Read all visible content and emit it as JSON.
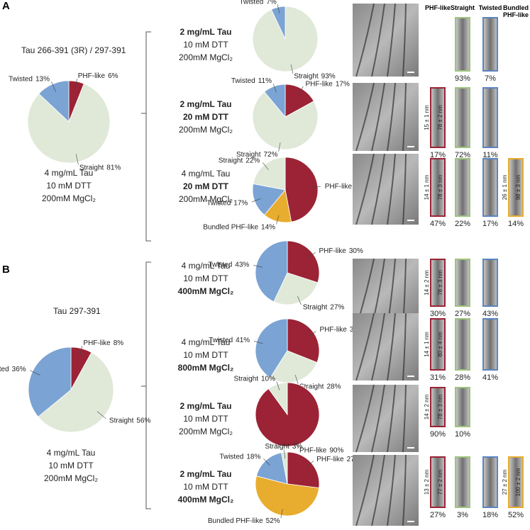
{
  "panels": [
    "A",
    "B"
  ],
  "columns": [
    "PHF-like",
    "Straight",
    "Twisted",
    "Bundled PHF-like"
  ],
  "column_colors": [
    "#9b2335",
    "#9cc47a",
    "#5a84c0",
    "#e8ac2e"
  ],
  "chart_data": [
    {
      "type": "pie",
      "title": "Tau 266-391 (3R) / 297-391",
      "categories": [
        "PHF-like",
        "Straight",
        "Twisted"
      ],
      "values": [
        6,
        81,
        13
      ],
      "value_labels": [
        "6%",
        "81%",
        "13%"
      ],
      "colors": [
        "#9b2335",
        "#e0e9d8",
        "#7ba3d4"
      ],
      "conditions": [
        "4 mg/mL Tau",
        "10 mM DTT",
        "200mM MgCl₂"
      ],
      "bold": [
        false,
        false,
        false
      ]
    },
    {
      "type": "pie",
      "categories": [
        "Straight",
        "Twisted"
      ],
      "values": [
        93,
        7
      ],
      "value_labels": [
        "93%",
        "7%"
      ],
      "colors": [
        "#e0e9d8",
        "#7ba3d4"
      ],
      "conditions": [
        "2 mg/mL  Tau",
        "10 mM DTT",
        "200mM MgCl₂"
      ],
      "bold": [
        true,
        false,
        false
      ],
      "measurements": {}
    },
    {
      "type": "pie",
      "categories": [
        "PHF-like",
        "Straight",
        "Twisted"
      ],
      "values": [
        17,
        72,
        11
      ],
      "value_labels": [
        "17%",
        "72%",
        "11%"
      ],
      "colors": [
        "#9b2335",
        "#e0e9d8",
        "#7ba3d4"
      ],
      "conditions": [
        "2 mg/mL  Tau",
        "20 mM DTT",
        "200mM MgCl₂"
      ],
      "bold": [
        true,
        true,
        false
      ],
      "measurements": {
        "PHF-like": [
          "15 ± 1 nm",
          "78 ± 2 nm"
        ]
      }
    },
    {
      "type": "pie",
      "categories": [
        "PHF-like",
        "Bundled PHF-like",
        "Twisted",
        "Straight"
      ],
      "values": [
        47,
        14,
        17,
        22
      ],
      "value_labels": [
        "47%",
        "14%",
        "17%",
        "22%"
      ],
      "colors": [
        "#9b2335",
        "#e8ac2e",
        "#7ba3d4",
        "#e0e9d8"
      ],
      "conditions": [
        "4 mg/mL Tau",
        "20 mM DTT",
        "200mM MgCl₂"
      ],
      "bold": [
        false,
        true,
        false
      ],
      "measurements": {
        "PHF-like": [
          "14 ± 1 nm",
          "78 ± 3 nm"
        ],
        "Bundled PHF-like": [
          "26 ± 1 nm",
          "98 ± 3 nm"
        ]
      }
    },
    {
      "type": "pie",
      "title": "Tau 297-391",
      "categories": [
        "PHF-like",
        "Straight",
        "Twisted"
      ],
      "values": [
        8,
        56,
        36
      ],
      "value_labels": [
        "8%",
        "56%",
        "36%"
      ],
      "colors": [
        "#9b2335",
        "#e0e9d8",
        "#7ba3d4"
      ],
      "conditions": [
        "4 mg/mL  Tau",
        "10 mM DTT",
        "200mM MgCl₂"
      ],
      "bold": [
        false,
        false,
        false
      ]
    },
    {
      "type": "pie",
      "categories": [
        "PHF-like",
        "Straight",
        "Twisted"
      ],
      "values": [
        30,
        27,
        43
      ],
      "value_labels": [
        "30%",
        "27%",
        "43%"
      ],
      "colors": [
        "#9b2335",
        "#e0e9d8",
        "#7ba3d4"
      ],
      "conditions": [
        "4 mg/mL Tau",
        "10 mM DTT",
        "400mM MgCl₂"
      ],
      "bold": [
        false,
        false,
        true
      ],
      "measurements": {
        "PHF-like": [
          "14 ± 2 nm",
          "78 ± 3 nm"
        ]
      }
    },
    {
      "type": "pie",
      "categories": [
        "PHF-like",
        "Straight",
        "Twisted"
      ],
      "values": [
        31,
        28,
        41
      ],
      "value_labels": [
        "31%",
        "28%",
        "41%"
      ],
      "colors": [
        "#9b2335",
        "#e0e9d8",
        "#7ba3d4"
      ],
      "conditions": [
        "4 mg/mL Tau",
        "10 mM DTT",
        "800mM MgCl₂"
      ],
      "bold": [
        false,
        false,
        true
      ],
      "measurements": {
        "PHF-like": [
          "14 ± 1 nm",
          "80 ± 4 nm"
        ]
      }
    },
    {
      "type": "pie",
      "categories": [
        "PHF-like",
        "Straight"
      ],
      "values": [
        90,
        10
      ],
      "value_labels": [
        "90%",
        "10%"
      ],
      "colors": [
        "#9b2335",
        "#e0e9d8"
      ],
      "conditions": [
        "2 mg/mL Tau",
        "10 mM DTT",
        "200mM MgCl₂"
      ],
      "bold": [
        true,
        false,
        false
      ],
      "measurements": {
        "PHF-like": [
          "14 ± 2 nm",
          "78 ± 3 nm"
        ]
      }
    },
    {
      "type": "pie",
      "categories": [
        "PHF-like",
        "Bundled PHF-like",
        "Twisted",
        "Straight"
      ],
      "values": [
        27,
        52,
        18,
        3
      ],
      "value_labels": [
        "27%",
        "52%",
        "18%",
        "3%"
      ],
      "colors": [
        "#9b2335",
        "#e8ac2e",
        "#7ba3d4",
        "#e0e9d8"
      ],
      "conditions": [
        "2 mg/mL Tau",
        "10 mM DTT",
        "400mM MgCl₂"
      ],
      "bold": [
        true,
        false,
        true
      ],
      "measurements": {
        "PHF-like": [
          "13 ± 2 nm",
          "77 ± 2 nm"
        ],
        "Bundled PHF-like": [
          "27 ± 2 nm",
          "100 ± 2 nm"
        ]
      }
    }
  ]
}
